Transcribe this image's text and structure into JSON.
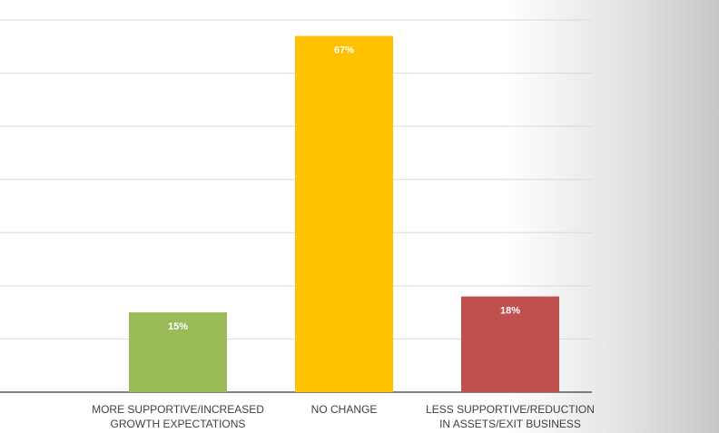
{
  "chart_data": {
    "type": "bar",
    "categories": [
      "MORE SUPPORTIVE/INCREASED GROWTH EXPECTATIONS",
      "NO CHANGE",
      "LESS SUPPORTIVE/REDUCTION IN ASSETS/EXIT BUSINESS"
    ],
    "values": [
      15,
      67,
      18
    ],
    "value_labels": [
      "15%",
      "67%",
      "18%"
    ],
    "colors": [
      "#9bbb59",
      "#ffc000",
      "#c0504d"
    ],
    "ylim": [
      0,
      70
    ],
    "yticks": [
      0,
      10,
      20,
      30,
      40,
      50,
      60,
      70
    ],
    "grid": true
  }
}
